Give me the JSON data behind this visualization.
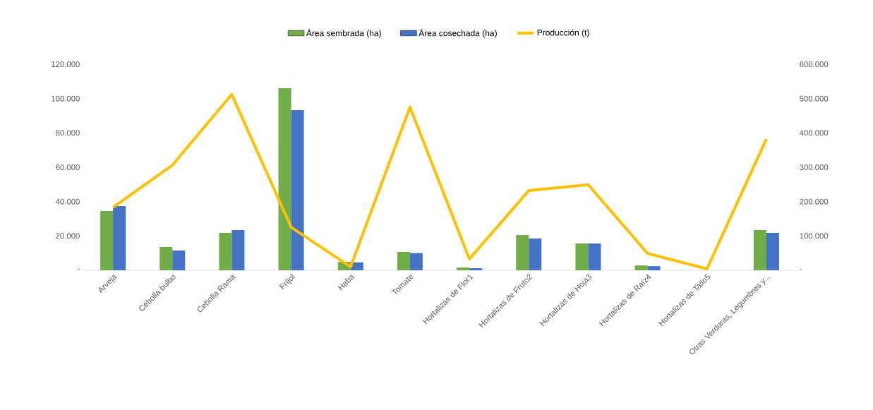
{
  "chart_data": {
    "type": "bar",
    "legend": "top",
    "categories": [
      "Arveja",
      "Cebolla bulbo",
      "Cebolla Rama",
      "Fríjol",
      "Haba",
      "Tomate",
      "Hortalizas de Flor1",
      "Hortalizas de Fruto2",
      "Hortalizas de Hoja3",
      "Hortalizas de Raíz4",
      "Hortalizas de Tallo5",
      "Otras Verduras, Legumbres y..."
    ],
    "series": [
      {
        "name": "Área sembrada (ha)",
        "color": "#70ad47",
        "values": [
          34500,
          13600,
          21800,
          106000,
          4900,
          10700,
          1600,
          20500,
          15600,
          2800,
          0,
          23400
        ]
      },
      {
        "name": "Área cosechada (ha)",
        "color": "#4472c4",
        "values": [
          37400,
          11500,
          23400,
          93300,
          4600,
          10000,
          1200,
          18500,
          15600,
          2400,
          0,
          21800
        ]
      },
      {
        "name": "Producción (t)",
        "type": "line",
        "axis": "y2",
        "color": "#ffc000",
        "values": [
          183000,
          306000,
          512000,
          125000,
          10000,
          475000,
          33000,
          232000,
          249000,
          49000,
          4000,
          382000
        ]
      }
    ],
    "ylim": [
      0,
      120000
    ],
    "yticks": [
      {
        "value": 0,
        "label": "-"
      },
      {
        "value": 20000,
        "label": "20.000"
      },
      {
        "value": 40000,
        "label": "40.000"
      },
      {
        "value": 60000,
        "label": "60.000"
      },
      {
        "value": 80000,
        "label": "80.000"
      },
      {
        "value": 100000,
        "label": "100.000"
      },
      {
        "value": 120000,
        "label": "120.000"
      }
    ],
    "y2lim": [
      0,
      600000
    ],
    "y2ticks": [
      {
        "value": 0,
        "label": "-"
      },
      {
        "value": 100000,
        "label": "100.000"
      },
      {
        "value": 200000,
        "label": "200.000"
      },
      {
        "value": 300000,
        "label": "300.000"
      },
      {
        "value": 400000,
        "label": "400.000"
      },
      {
        "value": 500000,
        "label": "500.000"
      },
      {
        "value": 600000,
        "label": "600.000"
      }
    ]
  }
}
